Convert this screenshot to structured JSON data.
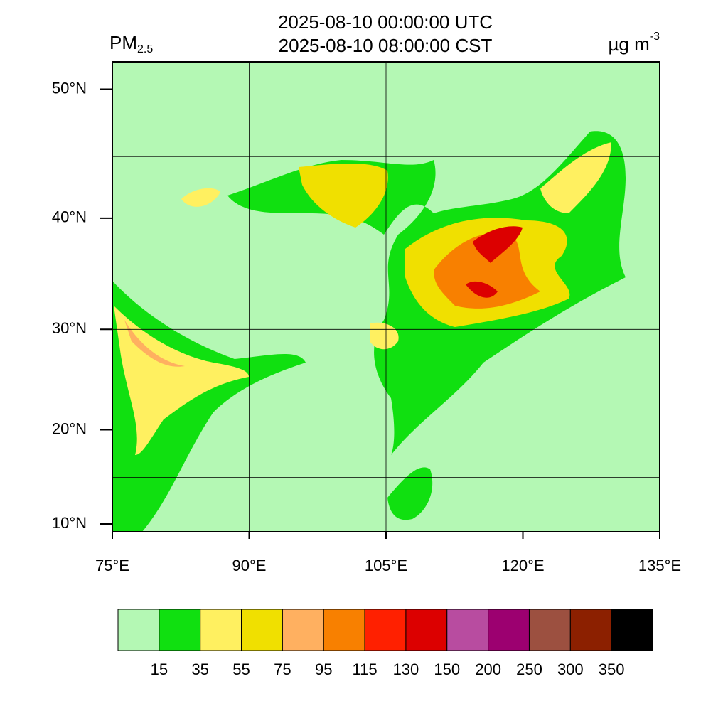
{
  "map": {
    "title_lines": [
      "2025-08-10 00:00:00 UTC",
      "2025-08-10 08:00:00 CST"
    ],
    "variable": {
      "main": "PM",
      "sub": "2.5"
    },
    "unit": {
      "main": "µg m",
      "sup": "-3"
    },
    "projection": "mercator",
    "xlim": [
      75,
      135
    ],
    "ylim": [
      9.15,
      51.9
    ],
    "xticks": [
      {
        "value": 75,
        "label": "75°E"
      },
      {
        "value": 90,
        "label": "90°E"
      },
      {
        "value": 105,
        "label": "105°E"
      },
      {
        "value": 120,
        "label": "120°E"
      },
      {
        "value": 135,
        "label": "135°E"
      }
    ],
    "yticks": [
      {
        "value": 10,
        "label": "10°N"
      },
      {
        "value": 20,
        "label": "20°N"
      },
      {
        "value": 30,
        "label": "30°N"
      },
      {
        "value": 40,
        "label": "40°N"
      },
      {
        "value": 50,
        "label": "50°N"
      }
    ],
    "grid_lon": [
      90,
      105,
      120
    ],
    "grid_lat": [
      15,
      30,
      45
    ],
    "colorbar": {
      "levels": [
        15,
        35,
        55,
        75,
        95,
        115,
        130,
        150,
        200,
        250,
        300,
        350
      ],
      "colors": [
        "#b4f8b4",
        "#10e010",
        "#fff060",
        "#f0e000",
        "#ffb060",
        "#f88000",
        "#ff2000",
        "#dc0000",
        "#b84ca0",
        "#9c0070",
        "#9c5040",
        "#8c2000",
        "#000000"
      ]
    }
  }
}
